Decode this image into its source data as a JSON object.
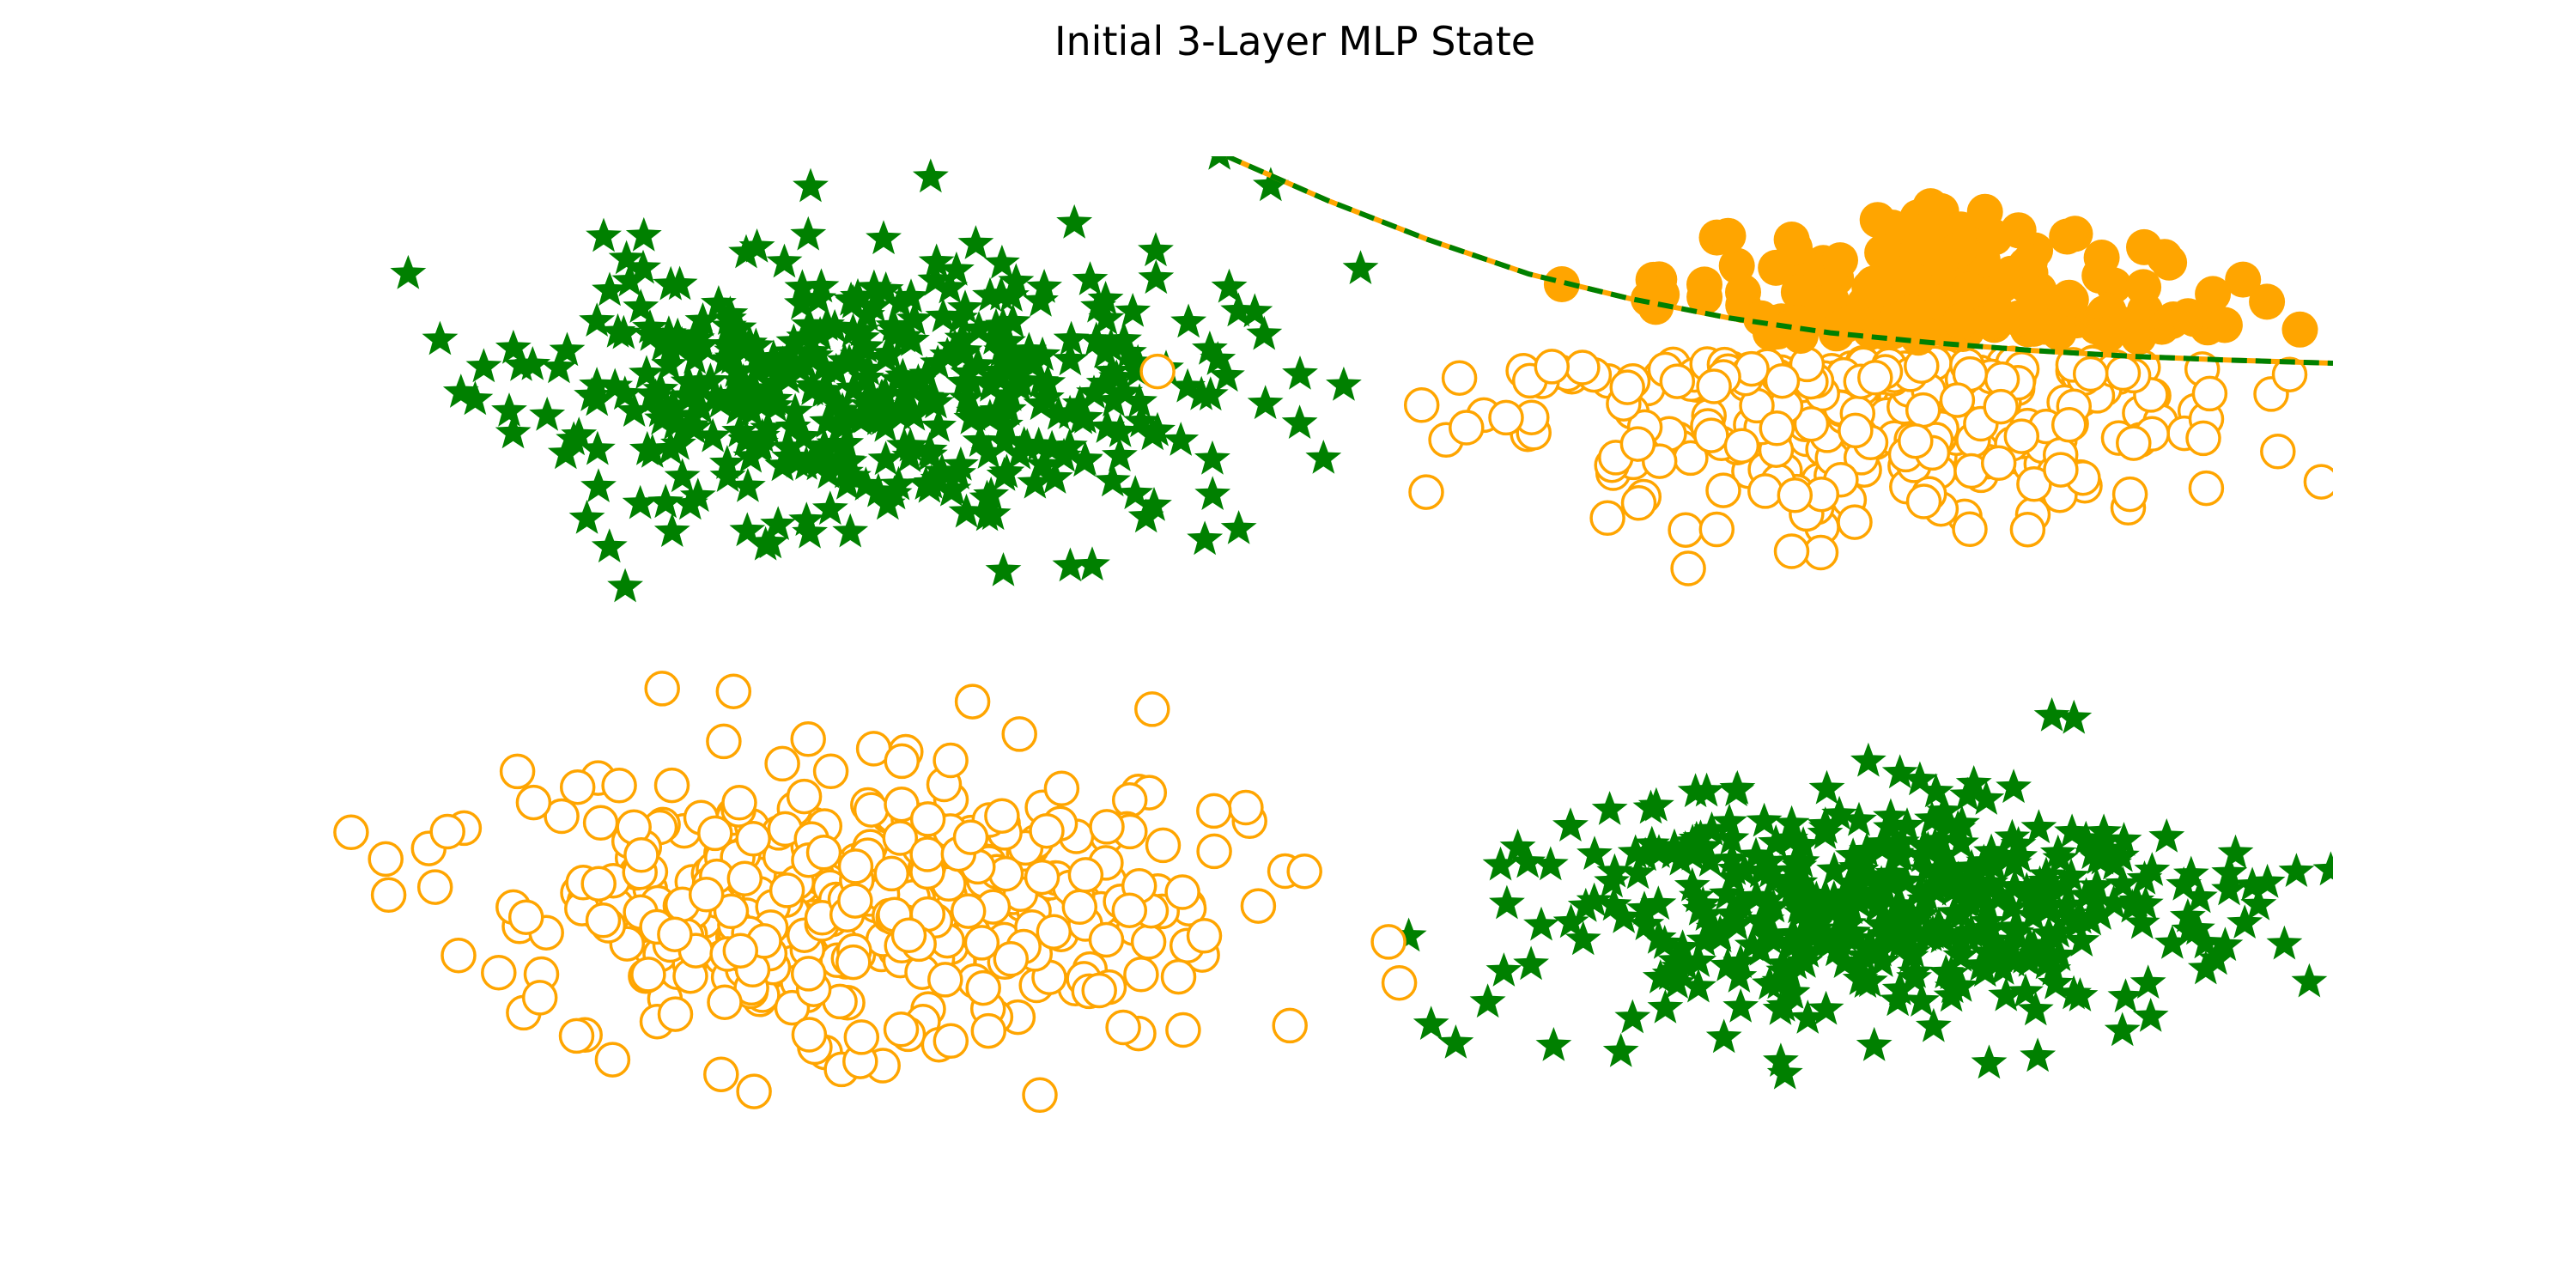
{
  "chart_data": {
    "type": "scatter",
    "title": "Initial 3-Layer MLP State",
    "xlabel": "",
    "ylabel": "",
    "xlim": [
      -1.0,
      1.0
    ],
    "ylim": [
      -1.0,
      1.0
    ],
    "axes_visible": false,
    "grid": false,
    "legend": "none",
    "colors": {
      "star": "#008000",
      "circle": "#FFA500",
      "boundary_a": "#008000",
      "boundary_b": "#FFA500"
    },
    "clusters": [
      {
        "marker": "star",
        "filled": true,
        "count": 420,
        "center": [
          -0.46,
          0.52
        ],
        "spread": [
          0.17,
          0.14
        ],
        "seed": 11
      },
      {
        "marker": "star",
        "filled": true,
        "count": 420,
        "center": [
          0.54,
          -0.54
        ],
        "spread": [
          0.16,
          0.12
        ],
        "seed": 23
      },
      {
        "marker": "circle",
        "filled": false,
        "count": 420,
        "center": [
          -0.45,
          -0.52
        ],
        "spread": [
          0.18,
          0.14
        ],
        "seed": 37
      },
      {
        "marker": "circle",
        "filled": false,
        "count": 330,
        "center": [
          0.53,
          0.48
        ],
        "spread": [
          0.16,
          0.12
        ],
        "seed": 51,
        "ymax": 0.58
      },
      {
        "marker": "circle",
        "filled": true,
        "count": 170,
        "center": [
          0.61,
          0.72
        ],
        "spread": [
          0.13,
          0.09
        ],
        "seed": 67,
        "ymin": 0.63
      }
    ],
    "boundary": {
      "style": "dashed",
      "x": [
        -0.1,
        0.0,
        0.1,
        0.2,
        0.3,
        0.4,
        0.5,
        0.6,
        0.7,
        0.8,
        0.9,
        1.0
      ],
      "y": [
        1.0,
        0.91,
        0.83,
        0.76,
        0.71,
        0.67,
        0.64,
        0.62,
        0.604,
        0.592,
        0.584,
        0.578
      ]
    }
  }
}
